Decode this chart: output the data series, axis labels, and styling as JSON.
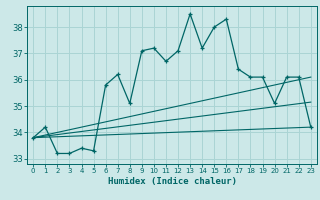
{
  "xlabel": "Humidex (Indice chaleur)",
  "ylabel": "",
  "bg_color": "#cce8e8",
  "grid_color": "#aad4d4",
  "line_color": "#006666",
  "xlim": [
    -0.5,
    23.5
  ],
  "ylim": [
    32.8,
    38.8
  ],
  "yticks": [
    33,
    34,
    35,
    36,
    37,
    38
  ],
  "xticks": [
    0,
    1,
    2,
    3,
    4,
    5,
    6,
    7,
    8,
    9,
    10,
    11,
    12,
    13,
    14,
    15,
    16,
    17,
    18,
    19,
    20,
    21,
    22,
    23
  ],
  "series1": {
    "x": [
      0,
      1,
      2,
      3,
      4,
      5,
      6,
      7,
      8,
      9,
      10,
      11,
      12,
      13,
      14,
      15,
      16,
      17,
      18,
      19,
      20,
      21,
      22,
      23
    ],
    "y": [
      33.8,
      34.2,
      33.2,
      33.2,
      33.4,
      33.3,
      35.8,
      36.2,
      35.1,
      37.1,
      37.2,
      36.7,
      37.1,
      38.5,
      37.2,
      38.0,
      38.3,
      36.4,
      36.1,
      36.1,
      35.1,
      36.1,
      36.1,
      34.2
    ]
  },
  "series2": {
    "x": [
      0,
      23
    ],
    "y": [
      33.8,
      34.2
    ]
  },
  "series3": {
    "x": [
      0,
      23
    ],
    "y": [
      33.8,
      35.15
    ]
  },
  "series4": {
    "x": [
      0,
      23
    ],
    "y": [
      33.8,
      36.1
    ]
  }
}
